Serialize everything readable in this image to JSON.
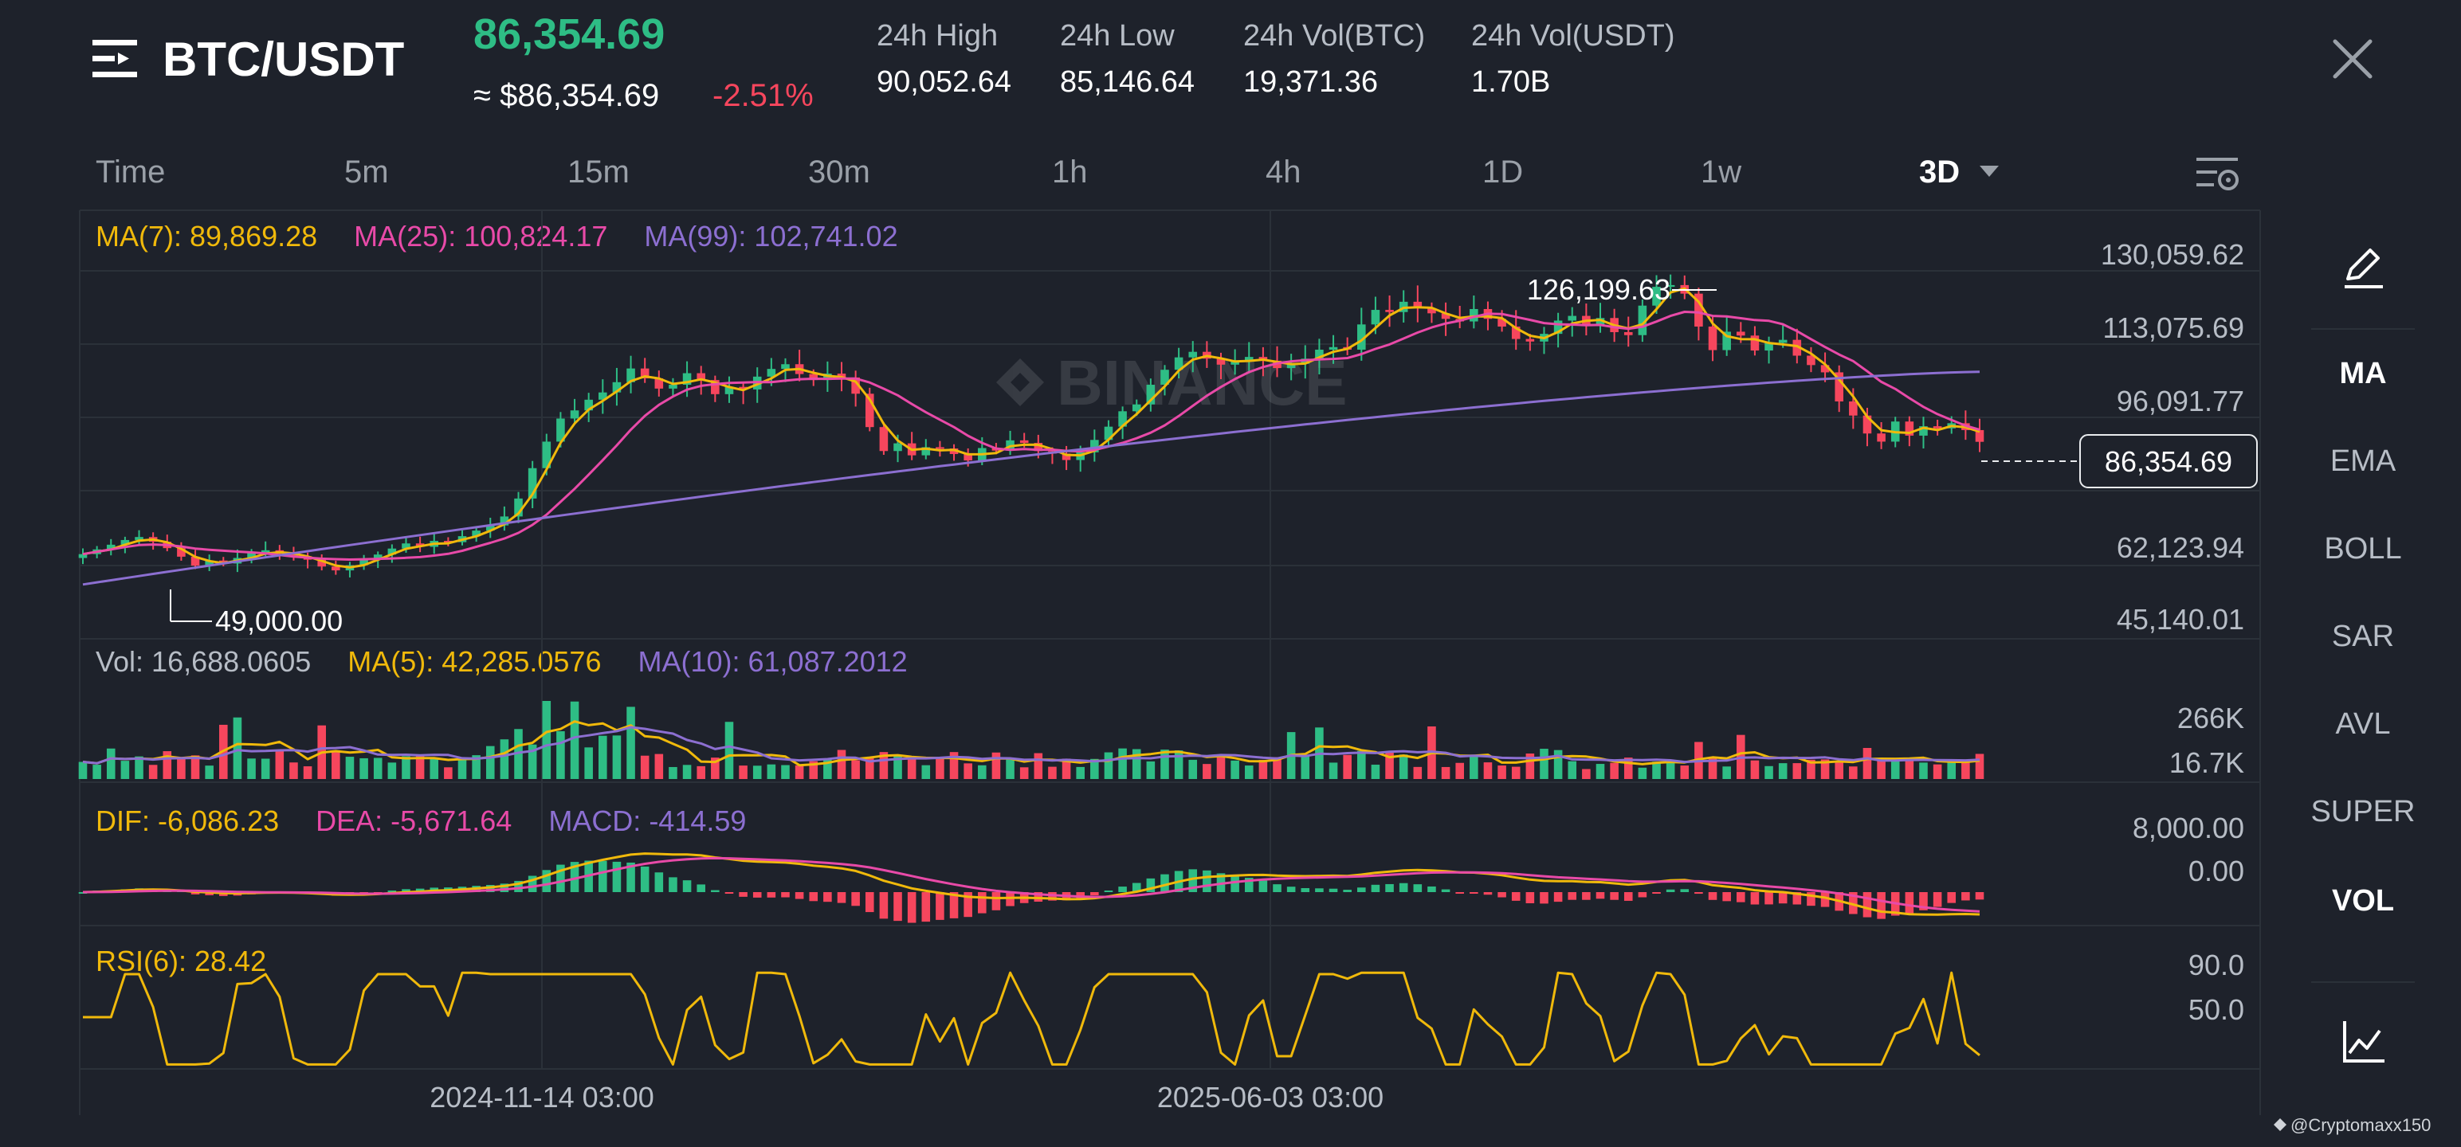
{
  "header": {
    "pair": "BTC/USDT",
    "last_price": "86,354.69",
    "approx_price": "≈ $86,354.69",
    "change_pct": "-2.51%",
    "stats": [
      {
        "label": "24h High",
        "value": "90,052.64"
      },
      {
        "label": "24h Low",
        "value": "85,146.64"
      },
      {
        "label": "24h Vol(BTC)",
        "value": "19,371.36"
      },
      {
        "label": "24h Vol(USDT)",
        "value": "1.70B"
      }
    ]
  },
  "timeframes": [
    {
      "label": "Time"
    },
    {
      "label": "5m"
    },
    {
      "label": "15m"
    },
    {
      "label": "30m"
    },
    {
      "label": "1h"
    },
    {
      "label": "4h"
    },
    {
      "label": "1D"
    },
    {
      "label": "1w"
    },
    {
      "label": "3D"
    }
  ],
  "active_timeframe": "3D",
  "indicators": [
    "MA",
    "EMA",
    "BOLL",
    "SAR",
    "AVL",
    "SUPER",
    "VOL"
  ],
  "active_indicators": [
    "MA",
    "VOL"
  ],
  "watermark": "BINANCE",
  "credit": "@Cryptomaxx150",
  "colors": {
    "up": "#2ebd85",
    "down": "#f6465d",
    "ma7": "#f0b90b",
    "ma25": "#e84aa8",
    "ma99": "#8c6fd1"
  },
  "chart_data": [
    {
      "type": "candlestick",
      "panel": "price",
      "legend": [
        {
          "text": "MA(7): 89,869.28",
          "color": "#f0b90b"
        },
        {
          "text": "MA(25): 100,824.17",
          "color": "#e84aa8"
        },
        {
          "text": "MA(99): 102,741.02",
          "color": "#8c6fd1"
        }
      ],
      "y_ticks": [
        "130,059.62",
        "113,075.69",
        "96,091.77",
        "62,123.94",
        "45,140.01"
      ],
      "ylim": [
        45140.01,
        130059.62
      ],
      "x_ticks": [
        "2024-11-14 03:00",
        "2025-06-03 03:00"
      ],
      "current_price_label": "86,354.69",
      "annotations": [
        {
          "text": "126,199.63"
        },
        {
          "text": "49,000.00"
        }
      ],
      "series_close": [
        60100,
        61200,
        62300,
        63400,
        64100,
        63000,
        61500,
        59500,
        57400,
        58600,
        57900,
        59200,
        60500,
        61000,
        60200,
        59600,
        58800,
        57200,
        56300,
        57500,
        58800,
        60000,
        61400,
        62600,
        61800,
        63200,
        62900,
        64300,
        65600,
        66800,
        68900,
        73100,
        80200,
        86400,
        91800,
        93700,
        96200,
        97900,
        100300,
        103500,
        101200,
        98800,
        99700,
        102400,
        100800,
        97500,
        99200,
        98600,
        101600,
        103400,
        104500,
        102200,
        100800,
        102300,
        101400,
        97600,
        89800,
        84200,
        86000,
        83200,
        85100,
        84800,
        83500,
        82000,
        84900,
        84300,
        86700,
        86100,
        84200,
        83600,
        82100,
        83900,
        86800,
        89900,
        93500,
        95100,
        99700,
        103200,
        106100,
        107400,
        105800,
        104400,
        105200,
        106200,
        105300,
        103600,
        104600,
        105800,
        107900,
        108500,
        107900,
        113800,
        117200,
        116700,
        119100,
        117600,
        116400,
        115100,
        114500,
        117400,
        115100,
        113300,
        110400,
        109800,
        111600,
        114700,
        115800,
        113500,
        115300,
        112000,
        111300,
        118200,
        122600,
        123000,
        121000,
        113300,
        107800,
        112100,
        111200,
        107700,
        109500,
        110200,
        106500,
        104300,
        102600,
        95800,
        92500,
        88300,
        86400,
        91100,
        87800,
        90000,
        89500,
        90700,
        89100,
        86354.69
      ],
      "series_ma7": [
        60100,
        61200,
        62300,
        63400,
        64100,
        63000,
        61500,
        59500,
        57400,
        58600,
        57900,
        59200,
        60500,
        61000,
        60200,
        59600,
        58800,
        57200,
        56300,
        57500,
        58800,
        60000,
        61400,
        62600,
        61800,
        63200,
        62900,
        64300,
        65600,
        66800,
        68900,
        73100,
        80200,
        86400,
        91800,
        93700,
        96200,
        97900,
        100300,
        103500,
        101200,
        98800,
        99700,
        102400,
        100800,
        97500,
        99200,
        98600,
        101600,
        103400,
        104500,
        102200,
        100800,
        102300,
        101400,
        97600,
        89800,
        84200,
        86000,
        83200,
        85100,
        84800,
        83500,
        82000,
        84900,
        84300,
        86700,
        86100,
        84200,
        83600,
        82100,
        83900,
        86800,
        89900,
        93500,
        95100,
        99700,
        103200,
        106100,
        107400,
        105800,
        104400,
        105200,
        106200,
        105300,
        103600,
        104600,
        105800,
        107900,
        108500,
        107900,
        113800,
        117200,
        116700,
        119100,
        117600,
        116400,
        115100,
        114500,
        117400,
        115100,
        113300,
        110400,
        109800,
        111600,
        114700,
        115800,
        113500,
        115300,
        112000,
        111300,
        118200,
        122600,
        123000,
        121000,
        113300,
        107800,
        112100,
        111200,
        107700,
        109500,
        110200,
        106500,
        104300,
        102600,
        95800,
        92500,
        88300,
        86400,
        91100,
        87800,
        90000,
        89500,
        90700,
        89100,
        89869.28
      ],
      "series_ma25": [
        60100,
        61200,
        62300,
        63400,
        64100,
        63000,
        61500,
        59500,
        57400,
        58600,
        57900,
        59200,
        60500,
        61000,
        60200,
        59600,
        58800,
        57200,
        56300,
        57500,
        58800,
        60000,
        61400,
        62600,
        61800,
        63200,
        62900,
        64300,
        65600,
        66800,
        68900,
        73100,
        80200,
        86400,
        91800,
        93700,
        96200,
        97900,
        100300,
        103500,
        101200,
        98800,
        99700,
        102400,
        100800,
        97500,
        99200,
        98600,
        101600,
        103400,
        104500,
        102200,
        100800,
        102300,
        101400,
        97600,
        89800,
        84200,
        86000,
        83200,
        85100,
        84800,
        83500,
        82000,
        84900,
        84300,
        86700,
        86100,
        84200,
        83600,
        82100,
        83900,
        86800,
        89900,
        93500,
        95100,
        99700,
        103200,
        106100,
        107400,
        105800,
        104400,
        105200,
        106200,
        105300,
        103600,
        104600,
        105800,
        107900,
        108500,
        107900,
        113800,
        117200,
        116700,
        119100,
        117600,
        116400,
        115100,
        114500,
        117400,
        115100,
        113300,
        110400,
        109800,
        111600,
        114700,
        115800,
        113500,
        115300,
        112000,
        111300,
        118200,
        122600,
        123000,
        121000,
        113300,
        107800,
        112100,
        111200,
        107700,
        109500,
        110200,
        106500,
        104300,
        102600,
        95800,
        92500,
        88300,
        86400,
        91100,
        87800,
        90000,
        89500,
        90700,
        89100,
        100824.17
      ],
      "series_ma99_endpoints": [
        [
          0,
          53000
        ],
        [
          135,
          102741.02
        ]
      ]
    },
    {
      "type": "bar",
      "panel": "volume",
      "legend": [
        {
          "text": "Vol: 16,688.0605",
          "color": "#b7bdc6"
        },
        {
          "text": "MA(5): 42,285.0576",
          "color": "#f0b90b"
        },
        {
          "text": "MA(10): 61,087.2012",
          "color": "#8c6fd1"
        }
      ],
      "y_ticks": [
        "266K",
        "16.7K"
      ]
    },
    {
      "type": "line",
      "panel": "macd",
      "legend": [
        {
          "text": "DIF: -6,086.23",
          "color": "#f0b90b"
        },
        {
          "text": "DEA: -5,671.64",
          "color": "#e84aa8"
        },
        {
          "text": "MACD: -414.59",
          "color": "#8c6fd1"
        }
      ],
      "y_ticks": [
        "8,000.00",
        "0.00"
      ]
    },
    {
      "type": "line",
      "panel": "rsi",
      "legend": [
        {
          "text": "RSI(6): 28.42",
          "color": "#f0b90b"
        }
      ],
      "y_ticks": [
        "90.0",
        "50.0"
      ]
    }
  ]
}
